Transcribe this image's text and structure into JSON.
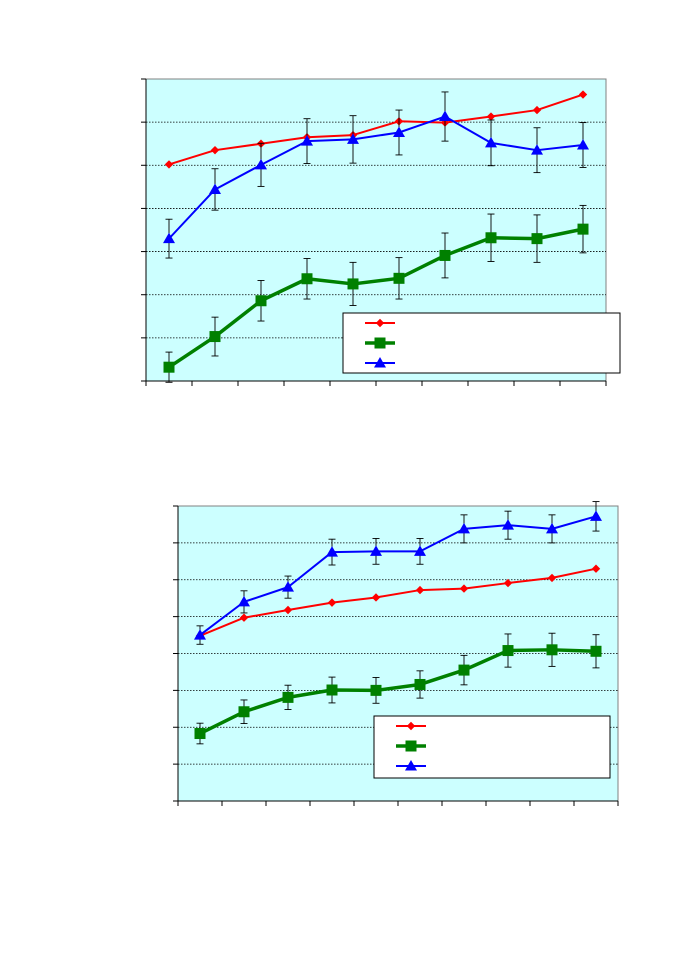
{
  "chart_data": [
    {
      "type": "line",
      "title": "",
      "xlabel": "",
      "ylabel": "",
      "x": [
        1,
        2,
        3,
        4,
        5,
        6,
        7,
        8,
        9,
        10
      ],
      "ylim": [
        0,
        7
      ],
      "grid": true,
      "legend": "bottom-right",
      "series": [
        {
          "color": "#ff0000",
          "marker": "diamond",
          "values": [
            5.02,
            5.35,
            5.5,
            5.65,
            5.7,
            6.02,
            5.99,
            6.13,
            6.28,
            6.64
          ],
          "error": [
            0,
            0,
            0,
            0,
            0,
            0,
            0,
            0,
            0,
            0
          ]
        },
        {
          "color": "#008000",
          "marker": "square",
          "values": [
            0.32,
            1.03,
            1.86,
            2.37,
            2.25,
            2.38,
            2.91,
            3.32,
            3.3,
            3.52
          ],
          "error": [
            0.35,
            0.45,
            0.47,
            0.47,
            0.5,
            0.48,
            0.52,
            0.55,
            0.55,
            0.55
          ]
        },
        {
          "color": "#0000ff",
          "marker": "triangle",
          "values": [
            3.3,
            4.44,
            5.01,
            5.56,
            5.6,
            5.76,
            6.13,
            5.52,
            5.35,
            5.47
          ],
          "error": [
            0.45,
            0.48,
            0.5,
            0.52,
            0.55,
            0.52,
            0.57,
            0.53,
            0.52,
            0.52
          ]
        }
      ]
    },
    {
      "type": "line",
      "title": "",
      "xlabel": "",
      "ylabel": "",
      "x": [
        1,
        2,
        3,
        4,
        5,
        6,
        7,
        8,
        9,
        10
      ],
      "ylim": [
        0,
        8
      ],
      "grid": true,
      "legend": "bottom-right",
      "series": [
        {
          "color": "#ff0000",
          "marker": "diamond",
          "values": [
            4.48,
            4.97,
            5.18,
            5.38,
            5.52,
            5.72,
            5.76,
            5.91,
            6.05,
            6.3
          ],
          "error": [
            0,
            0,
            0,
            0,
            0,
            0,
            0,
            0,
            0,
            0
          ]
        },
        {
          "color": "#008000",
          "marker": "square",
          "values": [
            1.83,
            2.42,
            2.81,
            3.01,
            3.0,
            3.16,
            3.55,
            4.08,
            4.1,
            4.06
          ],
          "error": [
            0.28,
            0.32,
            0.33,
            0.35,
            0.35,
            0.37,
            0.4,
            0.45,
            0.45,
            0.45
          ]
        },
        {
          "color": "#0000ff",
          "marker": "triangle",
          "values": [
            4.5,
            5.4,
            5.8,
            6.75,
            6.77,
            6.77,
            7.38,
            7.48,
            7.38,
            7.72
          ],
          "error": [
            0.25,
            0.3,
            0.3,
            0.35,
            0.35,
            0.35,
            0.38,
            0.38,
            0.38,
            0.4
          ]
        }
      ]
    }
  ]
}
